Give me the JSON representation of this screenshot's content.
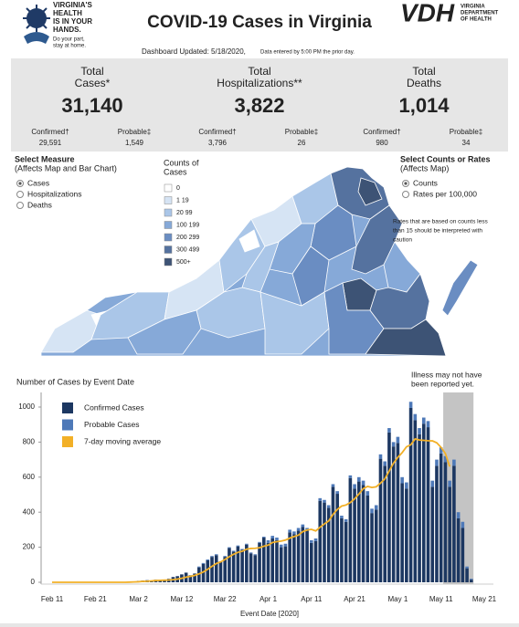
{
  "header": {
    "logo": {
      "lines": [
        "VIRGINIA'S",
        "HEALTH",
        "IS IN YOUR",
        "HANDS."
      ],
      "tagline": [
        "Do your part,",
        "stay at home."
      ]
    },
    "title": "COVID-19 Cases in Virginia",
    "agency": {
      "abbr": "VDH",
      "name": [
        "VIRGINIA",
        "DEPARTMENT",
        "OF HEALTH"
      ]
    },
    "updated": "Dashboard Updated: 5/18/2020,",
    "updated_note": "Data entered by 5:00 PM the prior day."
  },
  "summary": [
    {
      "label": [
        "Total",
        "Cases*"
      ],
      "total": "31,140",
      "sub": [
        {
          "label": "Confirmed†",
          "value": "29,591"
        },
        {
          "label": "Probable‡",
          "value": "1,549"
        }
      ]
    },
    {
      "label": [
        "Total",
        "Hospitalizations**"
      ],
      "total": "3,822",
      "sub": [
        {
          "label": "Confirmed†",
          "value": "3,796"
        },
        {
          "label": "Probable‡",
          "value": "26"
        }
      ]
    },
    {
      "label": [
        "Total",
        "Deaths"
      ],
      "total": "1,014",
      "sub": [
        {
          "label": "Confirmed†",
          "value": "980"
        },
        {
          "label": "Probable‡",
          "value": "34"
        }
      ]
    }
  ],
  "controls": {
    "measure": {
      "title": [
        "Select Measure",
        "(Affects Map and Bar Chart)"
      ],
      "options": [
        "Cases",
        "Hospitalizations",
        "Deaths"
      ],
      "selected": 0
    },
    "rates": {
      "title": [
        "Select Counts or Rates",
        "(Affects Map)"
      ],
      "options": [
        "Counts",
        "Rates per 100,000"
      ],
      "selected": 0
    },
    "note": [
      "Rates that are based on counts less",
      "than 15 should be interpreted with",
      "caution"
    ]
  },
  "map_legend": {
    "title": [
      "Counts of",
      "Cases"
    ],
    "items": [
      {
        "label": "0",
        "color": "#ffffff"
      },
      {
        "label": "1 19",
        "color": "#d6e4f4"
      },
      {
        "label": "20 99",
        "color": "#aac6e8"
      },
      {
        "label": "100 199",
        "color": "#86a9d8"
      },
      {
        "label": "200 299",
        "color": "#6a8dc2"
      },
      {
        "label": "300 499",
        "color": "#55729f"
      },
      {
        "label": "500+",
        "color": "#3d5375"
      }
    ]
  },
  "chart_data": {
    "type": "bar",
    "stacked": true,
    "title": "Number of Cases by Event Date",
    "annotation": [
      "Illness may not have",
      "been reported yet."
    ],
    "x_label": "Event Date [2020]",
    "x": [
      "Feb 11",
      "Feb 12",
      "Feb 13",
      "Feb 14",
      "Feb 15",
      "Feb 16",
      "Feb 17",
      "Feb 18",
      "Feb 19",
      "Feb 20",
      "Feb 21",
      "Feb 22",
      "Feb 23",
      "Feb 24",
      "Feb 25",
      "Feb 26",
      "Feb 27",
      "Feb 28",
      "Feb 29",
      "Mar 1",
      "Mar 2",
      "Mar 3",
      "Mar 4",
      "Mar 5",
      "Mar 6",
      "Mar 7",
      "Mar 8",
      "Mar 9",
      "Mar 10",
      "Mar 11",
      "Mar 12",
      "Mar 13",
      "Mar 14",
      "Mar 15",
      "Mar 16",
      "Mar 17",
      "Mar 18",
      "Mar 19",
      "Mar 20",
      "Mar 21",
      "Mar 22",
      "Mar 23",
      "Mar 24",
      "Mar 25",
      "Mar 26",
      "Mar 27",
      "Mar 28",
      "Mar 29",
      "Mar 30",
      "Mar 31",
      "Apr 1",
      "Apr 2",
      "Apr 3",
      "Apr 4",
      "Apr 5",
      "Apr 6",
      "Apr 7",
      "Apr 8",
      "Apr 9",
      "Apr 10",
      "Apr 11",
      "Apr 12",
      "Apr 13",
      "Apr 14",
      "Apr 15",
      "Apr 16",
      "Apr 17",
      "Apr 18",
      "Apr 19",
      "Apr 20",
      "Apr 21",
      "Apr 22",
      "Apr 23",
      "Apr 24",
      "Apr 25",
      "Apr 26",
      "Apr 27",
      "Apr 28",
      "Apr 29",
      "Apr 30",
      "May 1",
      "May 2",
      "May 3",
      "May 4",
      "May 5",
      "May 6",
      "May 7",
      "May 8",
      "May 9",
      "May 10",
      "May 11",
      "May 12",
      "May 13",
      "May 14",
      "May 15",
      "May 16",
      "May 17",
      "May 18",
      "May 19",
      "May 20",
      "May 21"
    ],
    "xticks": [
      "Feb 11",
      "Feb 21",
      "Mar 2",
      "Mar 12",
      "Mar 22",
      "Apr 1",
      "Apr 11",
      "Apr 21",
      "May 1",
      "May 11",
      "May 21"
    ],
    "ylim": [
      0,
      1050
    ],
    "yticks": [
      0,
      200,
      400,
      600,
      800,
      1000
    ],
    "grid": false,
    "shade": {
      "from": "May 12",
      "to": "May 18",
      "color": "#c4c4c4"
    },
    "series": [
      {
        "name": "Confirmed Cases",
        "type": "bar",
        "color": "#1c3761",
        "values": [
          0,
          0,
          0,
          0,
          0,
          0,
          0,
          0,
          0,
          0,
          0,
          0,
          0,
          0,
          1,
          0,
          2,
          1,
          2,
          5,
          8,
          10,
          12,
          8,
          15,
          10,
          12,
          20,
          30,
          35,
          45,
          55,
          40,
          50,
          85,
          105,
          125,
          145,
          155,
          115,
          145,
          195,
          175,
          205,
          185,
          215,
          165,
          155,
          225,
          255,
          225,
          250,
          240,
          200,
          205,
          285,
          275,
          295,
          315,
          295,
          225,
          235,
          465,
          455,
          425,
          545,
          505,
          365,
          345,
          595,
          535,
          575,
          555,
          495,
          395,
          415,
          705,
          665,
          855,
          775,
          795,
          565,
          535,
          995,
          925,
          845,
          905,
          885,
          545,
          665,
          735,
          685,
          545,
          665,
          365,
          310,
          80,
          15,
          null,
          null,
          null
        ]
      },
      {
        "name": "Probable Cases",
        "type": "bar",
        "color": "#4e79b8",
        "values": [
          0,
          0,
          0,
          0,
          0,
          0,
          0,
          0,
          0,
          0,
          0,
          0,
          0,
          0,
          0,
          0,
          0,
          0,
          0,
          0,
          0,
          0,
          0,
          0,
          0,
          0,
          0,
          0,
          0,
          0,
          0,
          0,
          0,
          0,
          5,
          5,
          5,
          5,
          5,
          5,
          5,
          5,
          5,
          5,
          5,
          5,
          5,
          5,
          5,
          5,
          15,
          15,
          15,
          15,
          15,
          15,
          15,
          15,
          15,
          15,
          15,
          15,
          15,
          15,
          15,
          15,
          15,
          15,
          15,
          15,
          25,
          25,
          25,
          25,
          25,
          25,
          25,
          25,
          25,
          25,
          35,
          35,
          35,
          35,
          35,
          35,
          35,
          35,
          35,
          35,
          35,
          35,
          35,
          35,
          35,
          35,
          10,
          5,
          null,
          null,
          null
        ]
      },
      {
        "name": "7-day moving average",
        "type": "line",
        "color": "#f2b027",
        "values": [
          0,
          0,
          0,
          0,
          0,
          0,
          0,
          0,
          0,
          0,
          0,
          0,
          0,
          0,
          0,
          0,
          0,
          0,
          1,
          2,
          3,
          5,
          6,
          8,
          10,
          11,
          12,
          13,
          15,
          18,
          23,
          29,
          34,
          39,
          48,
          59,
          74,
          91,
          107,
          116,
          130,
          146,
          160,
          171,
          177,
          189,
          193,
          194,
          197,
          206,
          212,
          227,
          232,
          235,
          241,
          252,
          261,
          269,
          289,
          298,
          302,
          293,
          314,
          333,
          350,
          387,
          416,
          435,
          441,
          455,
          476,
          504,
          534,
          547,
          541,
          545,
          566,
          590,
          635,
          680,
          713,
          740,
          773,
          785,
          818,
          812,
          810,
          808,
          807,
          796,
          770,
          735,
          660,
          null,
          null,
          null,
          null,
          null,
          null,
          null,
          null
        ]
      }
    ]
  }
}
